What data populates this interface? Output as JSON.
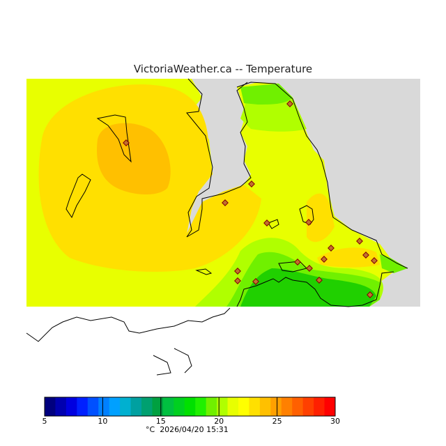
{
  "title": "VictoriaWeather.ca  --  Temperature",
  "legend": {
    "ticks": [
      "5",
      "10",
      "15",
      "20",
      "25",
      "30"
    ],
    "colors": [
      "#00007f",
      "#0000b0",
      "#0000e0",
      "#0020ff",
      "#0050ff",
      "#0080ff",
      "#00a0ff",
      "#00b0d0",
      "#00a0a0",
      "#00a070",
      "#00a040",
      "#00c040",
      "#00d020",
      "#00e000",
      "#20f000",
      "#70f000",
      "#b0ff00",
      "#e8ff00",
      "#ffff00",
      "#ffe000",
      "#ffc000",
      "#ffa000",
      "#ff8000",
      "#ff6000",
      "#ff4000",
      "#ff2000",
      "#ff0000"
    ],
    "unit": "°C",
    "timestamp": "2026/04/20 15:31"
  },
  "map": {
    "land_color": "#d9d9d9",
    "no_data_color": "#ffffff",
    "zone_colors": {
      "outer": "#e8ff00",
      "mid": "#ffe000",
      "warm": "#ffc000",
      "cool": "#b0ff00",
      "cooler": "#70f000",
      "coolest": "#20d000"
    }
  }
}
